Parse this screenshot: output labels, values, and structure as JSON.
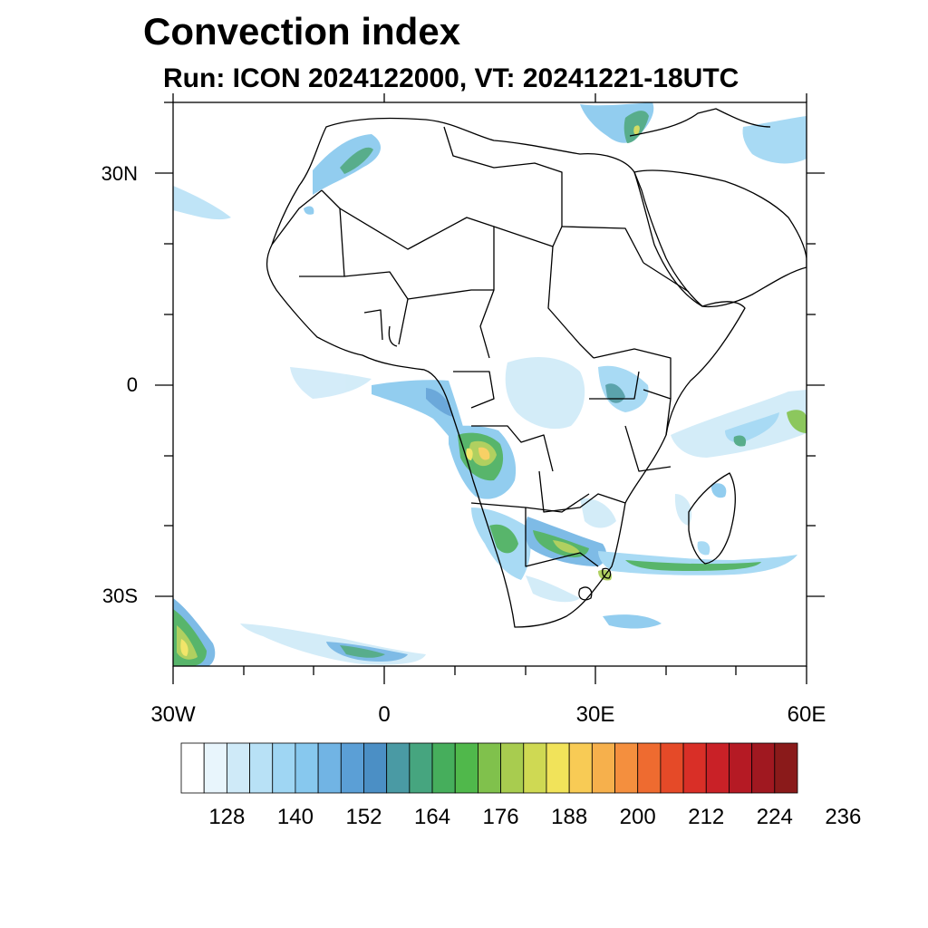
{
  "title": "Convection index",
  "subtitle": "Run: ICON 2024122000,  VT: 20241221-18UTC",
  "axes": {
    "lat_labels": [
      "30N",
      "0",
      "30S"
    ],
    "lon_labels": [
      "30W",
      "0",
      "30E",
      "60E"
    ]
  },
  "colorbar": {
    "labels": [
      "128",
      "140",
      "152",
      "164",
      "176",
      "188",
      "200",
      "212",
      "224",
      "236"
    ],
    "colors": [
      "#ffffff",
      "#e8f5fc",
      "#cfeaf8",
      "#b8e1f6",
      "#9fd6f3",
      "#87c8ee",
      "#71b4e4",
      "#5b9fd6",
      "#4b8fc5",
      "#4a9aa4",
      "#46a57f",
      "#46ae5c",
      "#50b84b",
      "#80c14c",
      "#a8cc4f",
      "#cfd953",
      "#f1e35a",
      "#f8cb55",
      "#f6b04c",
      "#f48f3e",
      "#ee6b30",
      "#e54a28",
      "#d92f27",
      "#c92127",
      "#b51a24",
      "#a01820",
      "#8a1a1a"
    ]
  },
  "map_data": {
    "region": "Africa and Arabian Peninsula",
    "lon_range": [
      -30,
      60
    ],
    "lat_range": [
      -40,
      40
    ],
    "variable": "Convection index"
  }
}
